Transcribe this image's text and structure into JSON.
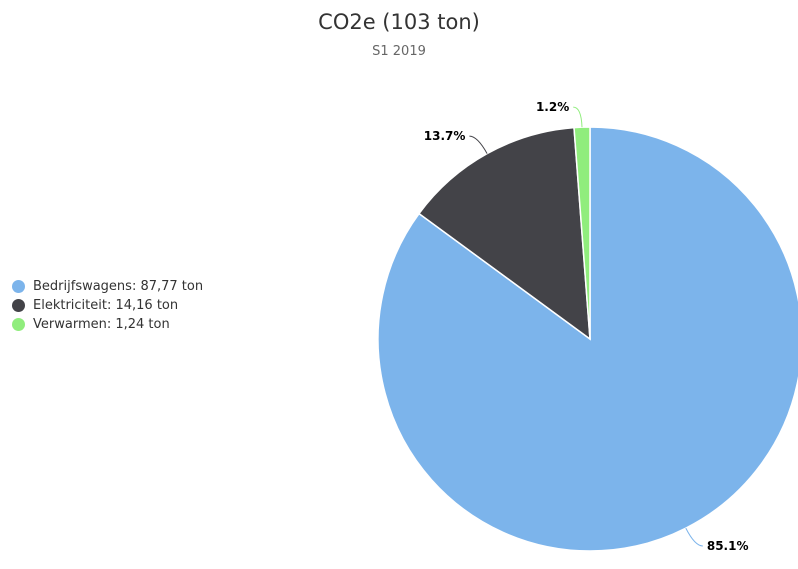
{
  "chart_data": {
    "type": "pie",
    "title": "CO2e (103 ton)",
    "subtitle": "S1 2019",
    "series": [
      {
        "name": "Bedrijfswagens",
        "value": 87.77,
        "value_label": "87,77 ton",
        "percent_label": "85.1%",
        "color": "#7cb4eb"
      },
      {
        "name": "Elektriciteit",
        "value": 14.16,
        "value_label": "14,16 ton",
        "percent_label": "13.7%",
        "color": "#434348"
      },
      {
        "name": "Verwarmen",
        "value": 1.24,
        "value_label": "1,24 ton",
        "percent_label": "1.2%",
        "color": "#90ed7d"
      }
    ],
    "legend_position": "left"
  },
  "legend": [
    {
      "text": "Bedrijfswagens: 87,77 ton"
    },
    {
      "text": "Elektriciteit: 14,16 ton"
    },
    {
      "text": "Verwarmen: 1,24 ton"
    }
  ]
}
